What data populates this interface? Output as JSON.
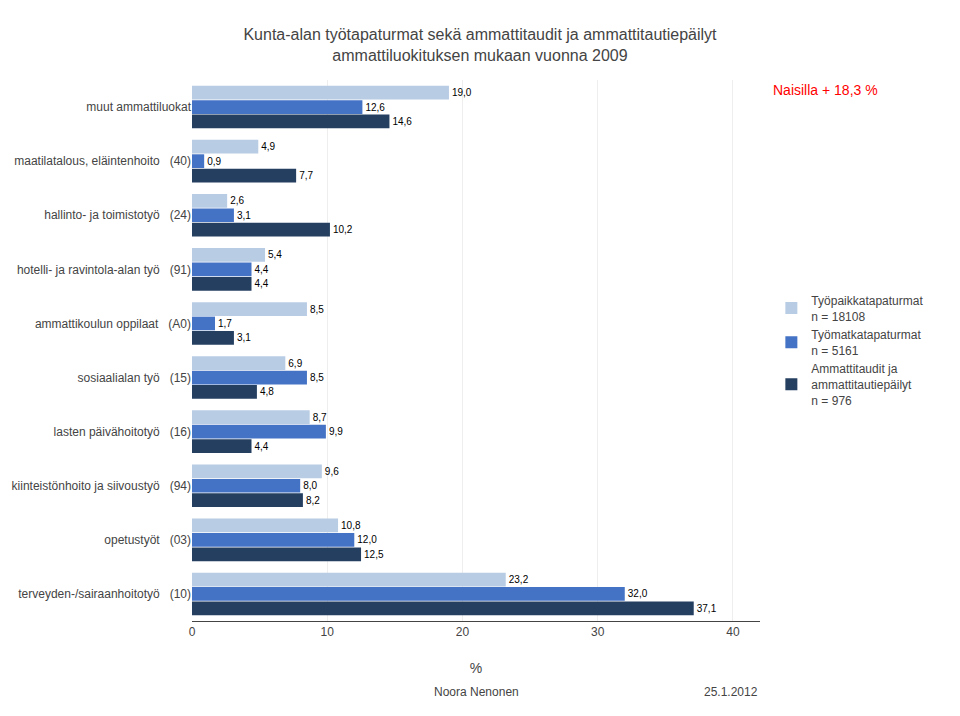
{
  "chart_data": {
    "type": "bar",
    "orientation": "horizontal",
    "title": "Kunta-alan työtapaturmat sekä ammattitaudit ja ammattitautiepäilyt",
    "subtitle": "ammattiluokituksen mukaan vuonna 2009",
    "x_label": "%",
    "categories": [
      "muut ammattiluokat",
      "maatilatalous, eläintenhoito   (40)",
      "hallinto- ja toimistotyö   (24)",
      "hotelli- ja ravintola-alan työ   (91)",
      "ammattikoulun oppilaat   (A0)",
      "sosiaalialan työ   (15)",
      "lasten päivähoitotyö   (16)",
      "kiinteistönhoito ja siivoustyö   (94)",
      "opetustyöt   (03)",
      "terveyden-/sairaanhoitotyö   (10)"
    ],
    "series": [
      {
        "name": "Työpaikkatapaturmat\nn = 18108",
        "color": "#b8cce4",
        "values": [
          19.0,
          4.9,
          2.6,
          5.4,
          8.5,
          6.9,
          8.7,
          9.6,
          10.8,
          23.2
        ],
        "value_labels": [
          "19,0",
          "4,9",
          "2,6",
          "5,4",
          "8,5",
          "6,9",
          "8,7",
          "9,6",
          "10,8",
          "23,2"
        ]
      },
      {
        "name": "Työmatkatapaturmat\nn = 5161",
        "color": "#4472c4",
        "values": [
          12.6,
          0.9,
          3.1,
          4.4,
          1.7,
          8.5,
          9.9,
          8.0,
          12.0,
          32.0
        ],
        "value_labels": [
          "12,6",
          "0,9",
          "3,1",
          "4,4",
          "1,7",
          "8,5",
          "9,9",
          "8,0",
          "12,0",
          "32,0"
        ]
      },
      {
        "name": "Ammattitaudit ja\nammattitautiepäilyt\nn = 976",
        "color": "#243f60",
        "values": [
          14.6,
          7.7,
          10.2,
          4.4,
          3.1,
          4.8,
          4.4,
          8.2,
          12.5,
          37.1
        ],
        "value_labels": [
          "14,6",
          "7,7",
          "10,2",
          "4,4",
          "3,1",
          "4,8",
          "4,4",
          "8,2",
          "12,5",
          "37,1"
        ]
      }
    ],
    "xlim": [
      0,
      42
    ],
    "xticks": [
      0,
      10,
      20,
      30,
      40
    ],
    "grid": true,
    "legend": "right",
    "data_labels": true,
    "annotations": [
      {
        "text": "Naisilla + 18,3 %",
        "color": "#ff0000"
      },
      {
        "text": "Noora Nenonen"
      },
      {
        "text": "25.1.2012"
      }
    ]
  }
}
